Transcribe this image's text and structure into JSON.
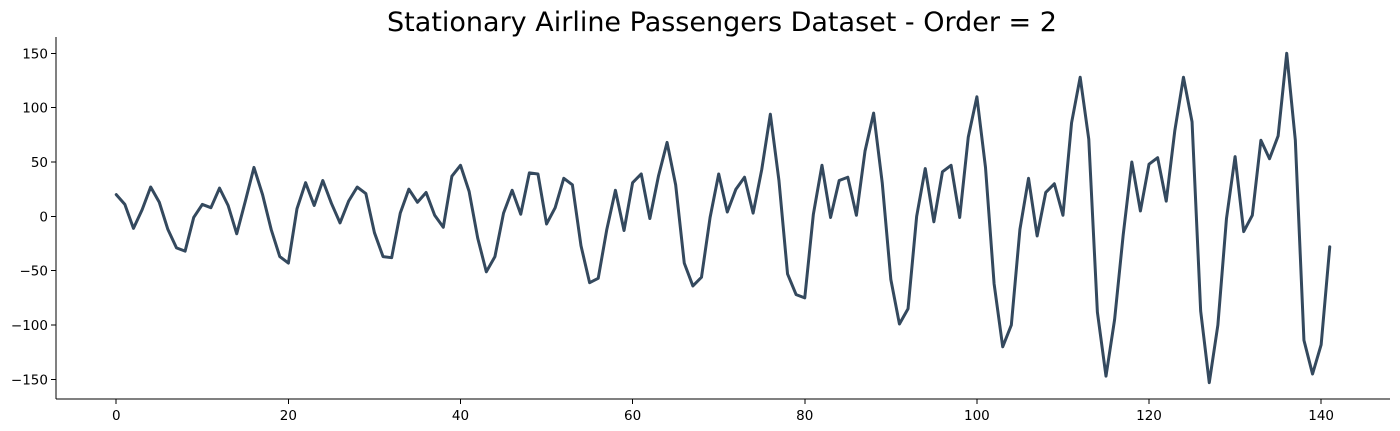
{
  "chart_data": {
    "type": "line",
    "title": "Stationary Airline Passengers Dataset - Order = 2",
    "xlabel": "",
    "ylabel": "",
    "xlim": [
      -7,
      148
    ],
    "ylim": [
      -168,
      165
    ],
    "xticks": [
      0,
      20,
      40,
      60,
      80,
      100,
      120,
      140
    ],
    "yticks": [
      -150,
      -100,
      -50,
      0,
      50,
      100,
      150
    ],
    "grid": false,
    "line_color": "#34495e",
    "series": [
      {
        "values": [
          20,
          11,
          -11,
          6,
          27,
          13,
          -12,
          -29,
          -32,
          -1,
          11,
          8,
          26,
          10,
          -16,
          14,
          45,
          20,
          -12,
          -37,
          -43,
          7,
          31,
          10,
          33,
          12,
          -6,
          14,
          27,
          21,
          -15,
          -37,
          -38,
          3,
          25,
          13,
          22,
          1,
          -10,
          37,
          47,
          23,
          -20,
          -51,
          -37,
          3,
          24,
          2,
          40,
          39,
          -7,
          8,
          35,
          29,
          -27,
          -61,
          -57,
          -12,
          24,
          -13,
          31,
          39,
          -2,
          37,
          68,
          29,
          -43,
          -64,
          -56,
          -1,
          39,
          4,
          25,
          36,
          3,
          43,
          94,
          33,
          -53,
          -72,
          -75,
          2,
          47,
          -1,
          33,
          36,
          1,
          60,
          95,
          31,
          -58,
          -99,
          -85,
          0,
          44,
          -5,
          41,
          47,
          -1,
          73,
          110,
          45,
          -62,
          -120,
          -100,
          -12,
          35,
          -18,
          22,
          30,
          1,
          86,
          128,
          71,
          -88,
          -147,
          -95,
          -17,
          50,
          5,
          48,
          54,
          14,
          79,
          128,
          87,
          -87,
          -153,
          -100,
          -2,
          55,
          -14,
          1,
          70,
          53,
          74,
          150,
          70,
          -114,
          -145,
          -118,
          -28
        ]
      }
    ]
  }
}
